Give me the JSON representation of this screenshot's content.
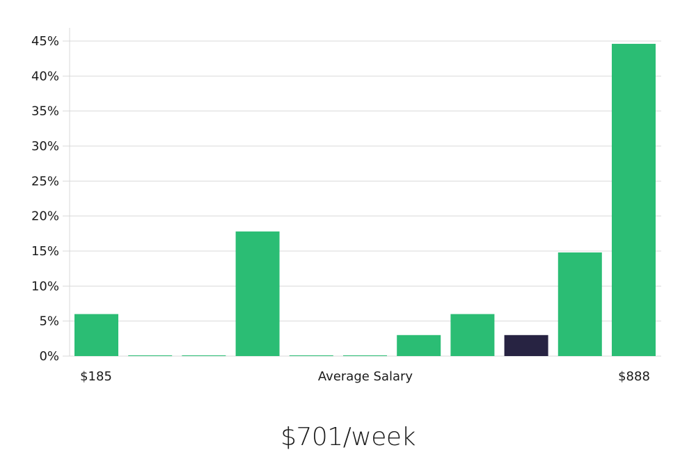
{
  "chart_data": {
    "type": "bar",
    "values": [
      6,
      0.1,
      0.1,
      17.8,
      0.1,
      0.1,
      3,
      6,
      3,
      14.8,
      44.6
    ],
    "highlight_index": 8,
    "ylim": [
      0,
      45
    ],
    "yticks": [
      "0%",
      "5%",
      "10%",
      "15%",
      "20%",
      "25%",
      "30%",
      "35%",
      "40%",
      "45%"
    ],
    "x_min_label": "$185",
    "xlabel": "Average Salary",
    "x_max_label": "$888",
    "grid": true,
    "colors": {
      "bar": "#2bbd74",
      "highlight": "#272342",
      "grid": "#d9d9d9"
    }
  },
  "headline": "$701/week"
}
